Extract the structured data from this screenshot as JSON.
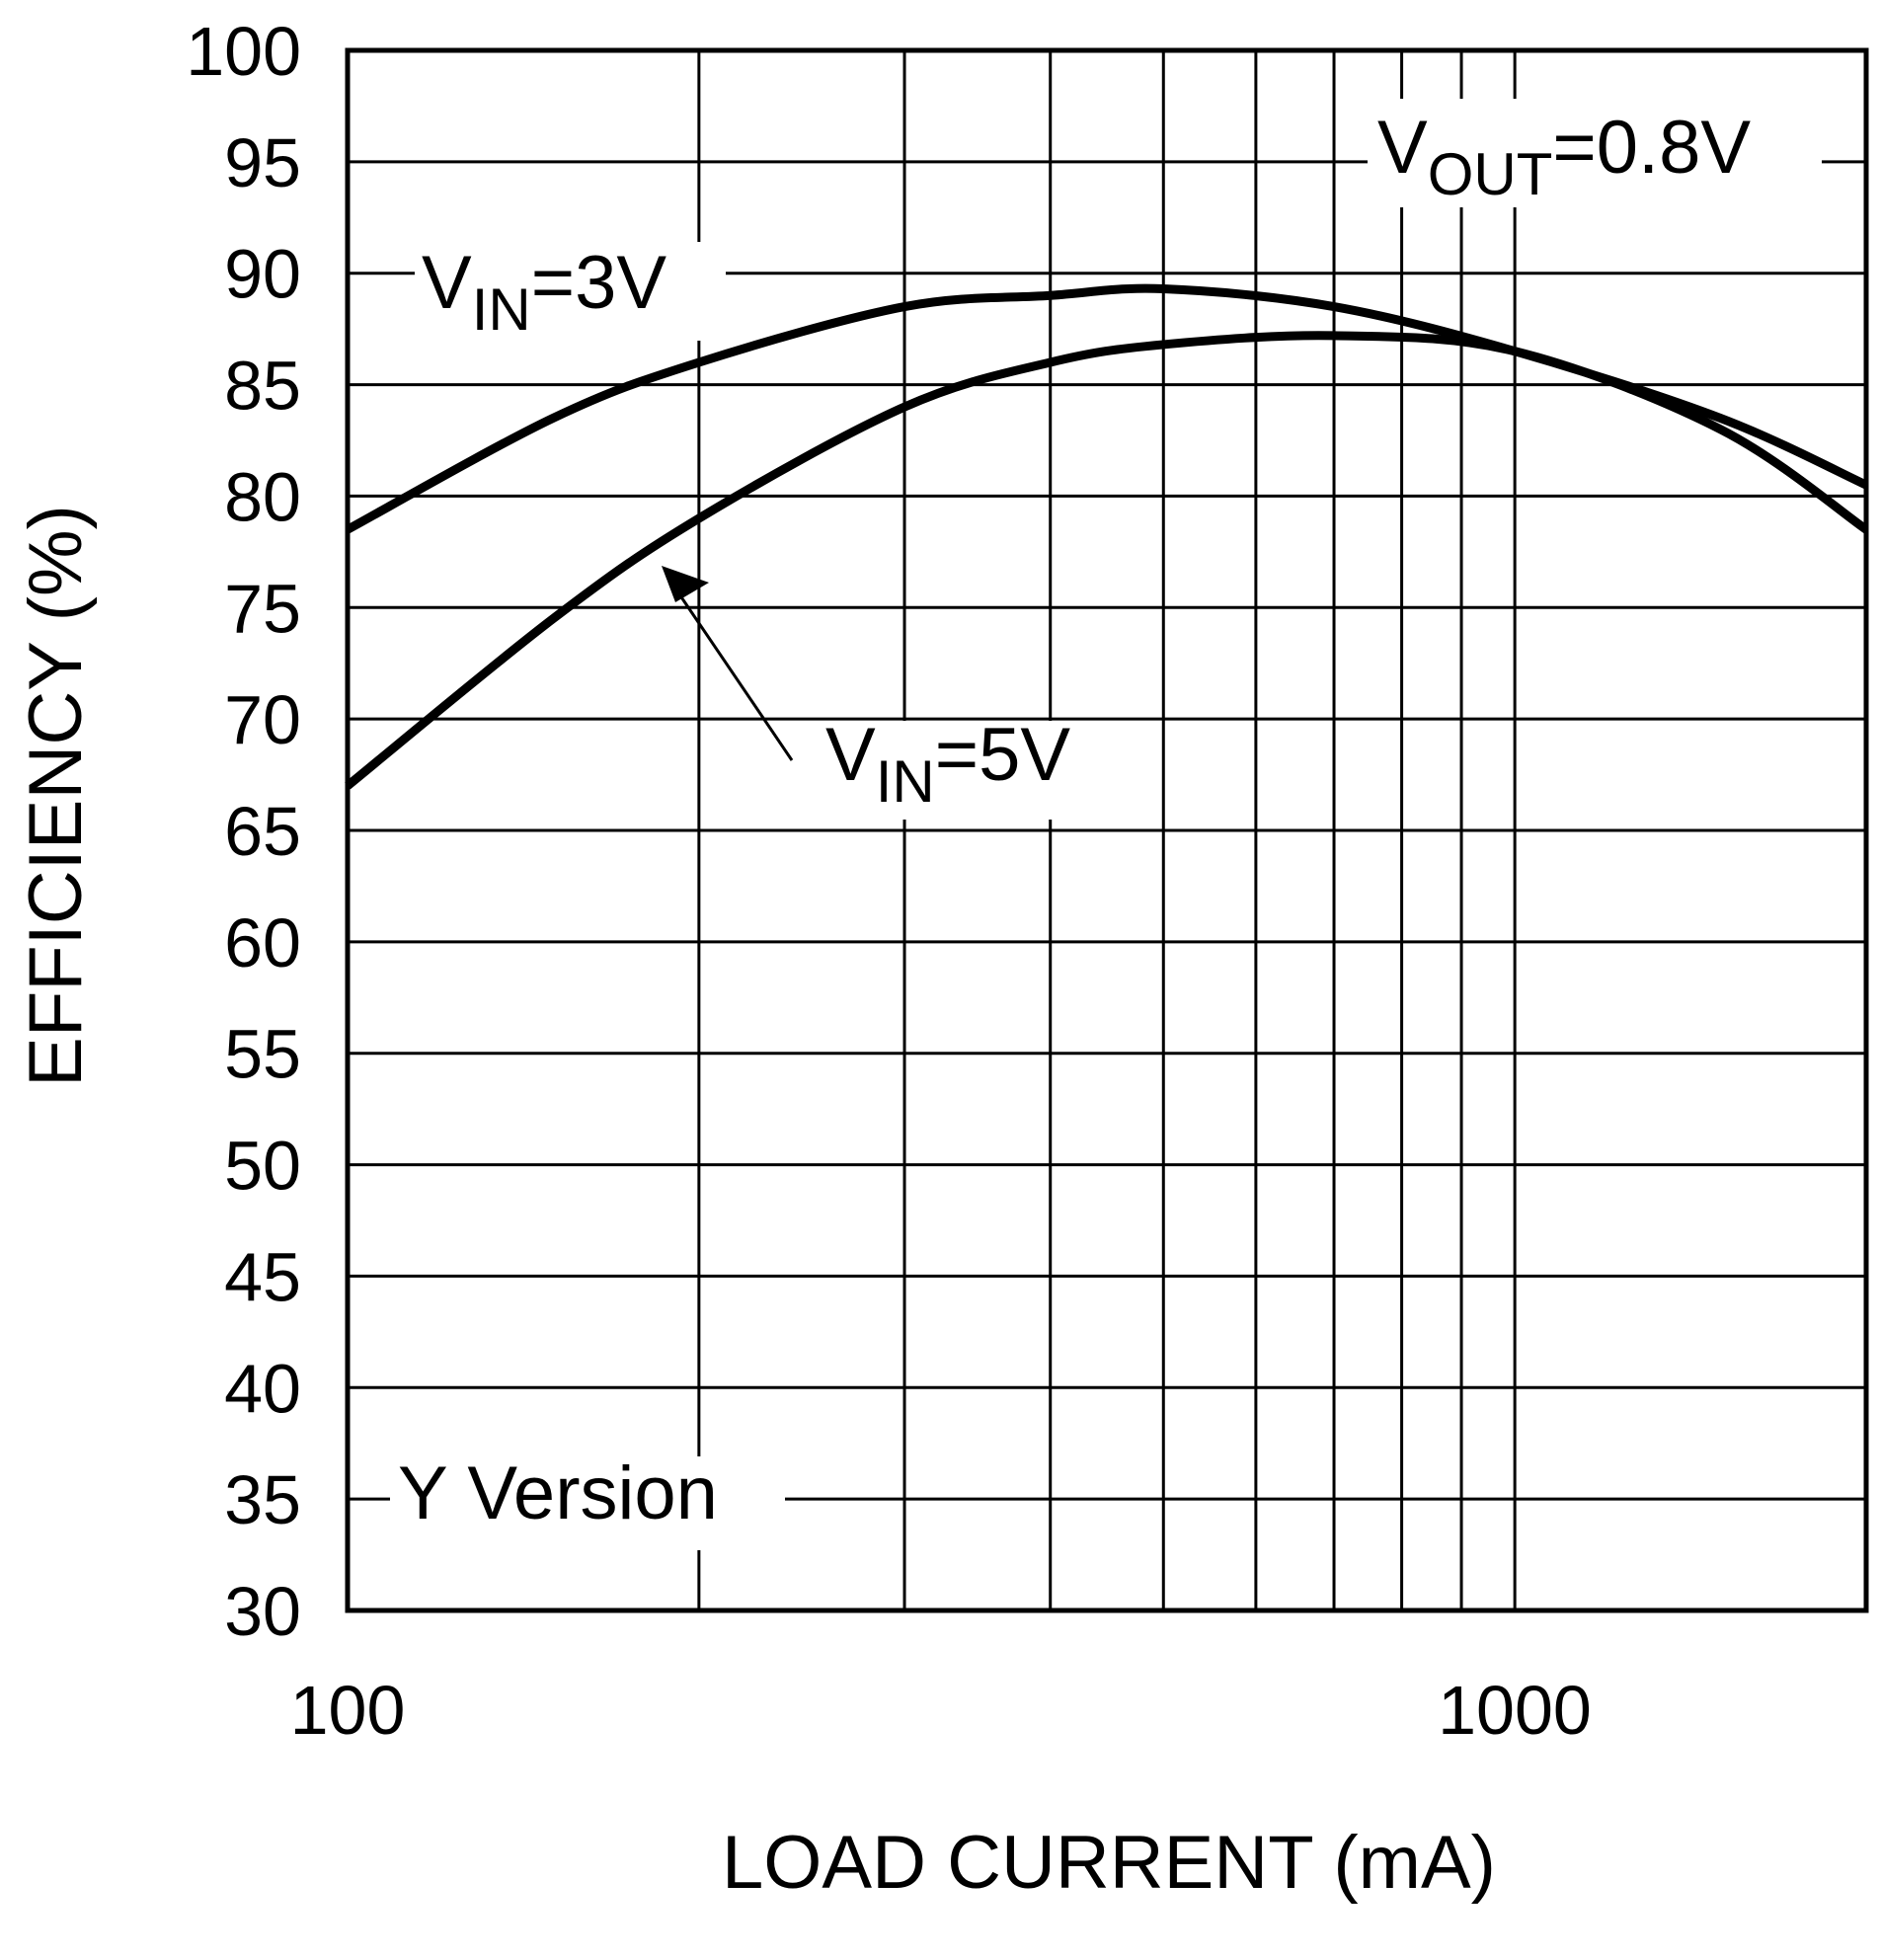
{
  "chart_data": {
    "type": "line",
    "title": "",
    "xlabel": "LOAD CURRENT (mA)",
    "ylabel": "EFFICIENCY (%)",
    "xscale": "log",
    "xlim": [
      100,
      2000
    ],
    "ylim": [
      30,
      100
    ],
    "grid": true,
    "x_tick_labels": [
      "100",
      "1000"
    ],
    "y_ticks": [
      30,
      35,
      40,
      45,
      50,
      55,
      60,
      65,
      70,
      75,
      80,
      85,
      90,
      95,
      100
    ],
    "series": [
      {
        "name": "VIN=3V",
        "label_main": "V",
        "label_sub": "IN",
        "label_rest": "=3V",
        "x": [
          100,
          150,
          200,
          300,
          400,
          500,
          700,
          1000,
          1500,
          2000
        ],
        "y": [
          78.5,
          83.5,
          86,
          88.5,
          89,
          89.3,
          88.5,
          86.5,
          83.5,
          80.5
        ]
      },
      {
        "name": "VIN=5V",
        "label_main": "V",
        "label_sub": "IN",
        "label_rest": "=5V",
        "x": [
          100,
          150,
          200,
          300,
          400,
          500,
          700,
          1000,
          1500,
          2000
        ],
        "y": [
          67,
          74.5,
          79,
          84,
          86,
          86.8,
          87.2,
          86.5,
          83,
          78.5
        ]
      }
    ],
    "annotations": {
      "vout": {
        "main": "V",
        "sub": "OUT",
        "rest": "=0.8V"
      },
      "version": "Y Version"
    }
  }
}
